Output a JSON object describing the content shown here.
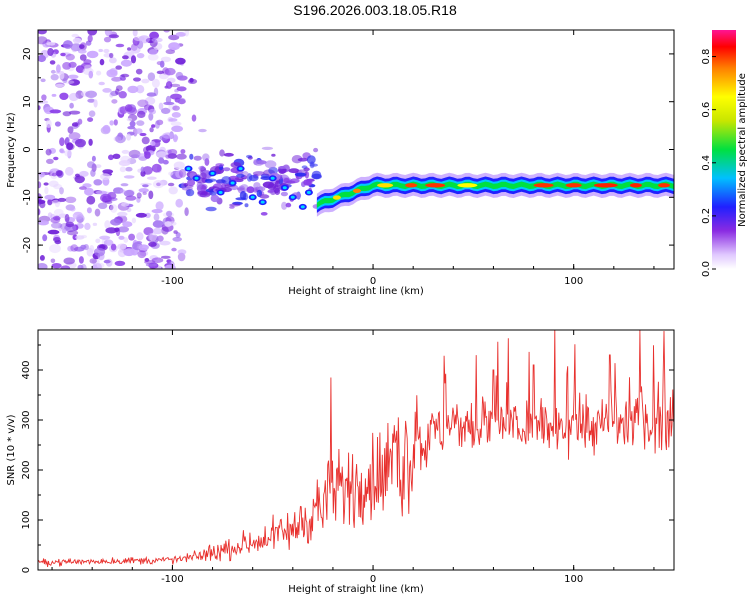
{
  "title": "S196.2026.003.18.05.R18",
  "chart_data": [
    {
      "type": "heatmap",
      "title": "S196.2026.003.18.05.R18",
      "xlabel": "Height of straight line (km)",
      "ylabel": "Frequency (Hz)",
      "xlim": [
        -167,
        150
      ],
      "ylim": [
        -25,
        25
      ],
      "xticks": [
        -100,
        0,
        100
      ],
      "yticks": [
        -20,
        -10,
        0,
        10,
        20
      ],
      "colorbar": {
        "label": "Normalized spectral amplitude",
        "range": [
          0,
          0.9
        ],
        "ticks": [
          0.0,
          0.2,
          0.4,
          0.6,
          0.8
        ]
      },
      "features": [
        {
          "name": "noise-region",
          "x_range": [
            -167,
            -95
          ],
          "freq_range": [
            -25,
            25
          ],
          "amplitude": 0.1
        },
        {
          "name": "scattered-patches",
          "x_range": [
            -95,
            -28
          ],
          "freq_range": [
            -20,
            5
          ],
          "amplitude": 0.25
        },
        {
          "name": "signal-band",
          "x_range": [
            -28,
            150
          ],
          "center_freq": -7.5,
          "bandwidth": 3,
          "amplitude_peak": 0.9
        }
      ]
    },
    {
      "type": "line",
      "xlabel": "Height of straight line (km)",
      "ylabel": "SNR (10 * v/v)",
      "xlim": [
        -167,
        150
      ],
      "ylim": [
        0,
        480
      ],
      "xticks": [
        -100,
        0,
        100
      ],
      "yticks": [
        0,
        100,
        200,
        300,
        400
      ],
      "color": "#e8312e",
      "trend": {
        "x": [
          -167,
          -130,
          -100,
          -90,
          -80,
          -60,
          -40,
          -30,
          -20,
          -10,
          0,
          10,
          20,
          30,
          40,
          60,
          80,
          100,
          120,
          140,
          150
        ],
        "y": [
          15,
          18,
          20,
          25,
          35,
          55,
          80,
          115,
          150,
          170,
          185,
          200,
          240,
          275,
          285,
          290,
          285,
          285,
          290,
          300,
          300
        ]
      },
      "spikes": [
        {
          "x": -21,
          "y": 385
        },
        {
          "x": 133,
          "y": 480
        },
        {
          "x": 145,
          "y": 478
        },
        {
          "x": 118,
          "y": 430
        },
        {
          "x": 80,
          "y": 410
        },
        {
          "x": 60,
          "y": 400
        }
      ]
    }
  ]
}
